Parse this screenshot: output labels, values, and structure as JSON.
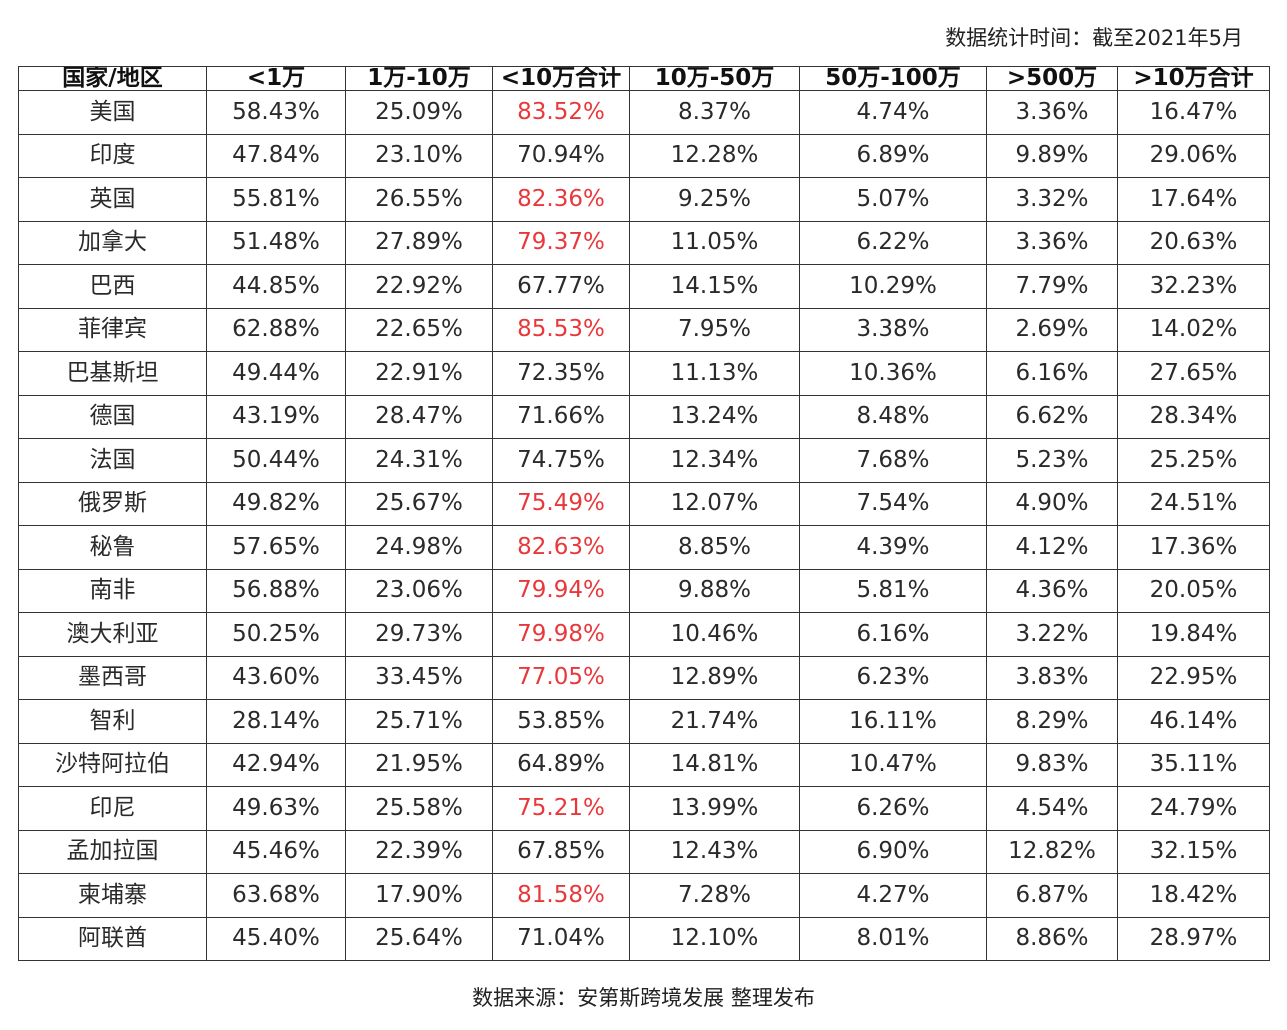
{
  "stat_time": "数据统计时间：截至2021年5月",
  "source": "数据来源：安第斯跨境发展 整理发布",
  "highlight_color": "#e8383c",
  "table": {
    "headers": [
      "国家/地区",
      "<1万",
      "1万-10万",
      "<10万合计",
      "10万-50万",
      "50万-100万",
      ">500万",
      ">10万合计"
    ],
    "highlight_column": 3,
    "rows": [
      {
        "cells": [
          "美国",
          "58.43%",
          "25.09%",
          "83.52%",
          "8.37%",
          "4.74%",
          "3.36%",
          "16.47%"
        ],
        "highlight": true
      },
      {
        "cells": [
          "印度",
          "47.84%",
          "23.10%",
          "70.94%",
          "12.28%",
          "6.89%",
          "9.89%",
          "29.06%"
        ],
        "highlight": false
      },
      {
        "cells": [
          "英国",
          "55.81%",
          "26.55%",
          "82.36%",
          "9.25%",
          "5.07%",
          "3.32%",
          "17.64%"
        ],
        "highlight": true
      },
      {
        "cells": [
          "加拿大",
          "51.48%",
          "27.89%",
          "79.37%",
          "11.05%",
          "6.22%",
          "3.36%",
          "20.63%"
        ],
        "highlight": true
      },
      {
        "cells": [
          "巴西",
          "44.85%",
          "22.92%",
          "67.77%",
          "14.15%",
          "10.29%",
          "7.79%",
          "32.23%"
        ],
        "highlight": false
      },
      {
        "cells": [
          "菲律宾",
          "62.88%",
          "22.65%",
          "85.53%",
          "7.95%",
          "3.38%",
          "2.69%",
          "14.02%"
        ],
        "highlight": true
      },
      {
        "cells": [
          "巴基斯坦",
          "49.44%",
          "22.91%",
          "72.35%",
          "11.13%",
          "10.36%",
          "6.16%",
          "27.65%"
        ],
        "highlight": false
      },
      {
        "cells": [
          "德国",
          "43.19%",
          "28.47%",
          "71.66%",
          "13.24%",
          "8.48%",
          "6.62%",
          "28.34%"
        ],
        "highlight": false
      },
      {
        "cells": [
          "法国",
          "50.44%",
          "24.31%",
          "74.75%",
          "12.34%",
          "7.68%",
          "5.23%",
          "25.25%"
        ],
        "highlight": false
      },
      {
        "cells": [
          "俄罗斯",
          "49.82%",
          "25.67%",
          "75.49%",
          "12.07%",
          "7.54%",
          "4.90%",
          "24.51%"
        ],
        "highlight": true
      },
      {
        "cells": [
          "秘鲁",
          "57.65%",
          "24.98%",
          "82.63%",
          "8.85%",
          "4.39%",
          "4.12%",
          "17.36%"
        ],
        "highlight": true
      },
      {
        "cells": [
          "南非",
          "56.88%",
          "23.06%",
          "79.94%",
          "9.88%",
          "5.81%",
          "4.36%",
          "20.05%"
        ],
        "highlight": true
      },
      {
        "cells": [
          "澳大利亚",
          "50.25%",
          "29.73%",
          "79.98%",
          "10.46%",
          "6.16%",
          "3.22%",
          "19.84%"
        ],
        "highlight": true
      },
      {
        "cells": [
          "墨西哥",
          "43.60%",
          "33.45%",
          "77.05%",
          "12.89%",
          "6.23%",
          "3.83%",
          "22.95%"
        ],
        "highlight": true
      },
      {
        "cells": [
          "智利",
          "28.14%",
          "25.71%",
          "53.85%",
          "21.74%",
          "16.11%",
          "8.29%",
          "46.14%"
        ],
        "highlight": false
      },
      {
        "cells": [
          "沙特阿拉伯",
          "42.94%",
          "21.95%",
          "64.89%",
          "14.81%",
          "10.47%",
          "9.83%",
          "35.11%"
        ],
        "highlight": false
      },
      {
        "cells": [
          "印尼",
          "49.63%",
          "25.58%",
          "75.21%",
          "13.99%",
          "6.26%",
          "4.54%",
          "24.79%"
        ],
        "highlight": true
      },
      {
        "cells": [
          "孟加拉国",
          "45.46%",
          "22.39%",
          "67.85%",
          "12.43%",
          "6.90%",
          "12.82%",
          "32.15%"
        ],
        "highlight": false
      },
      {
        "cells": [
          "柬埔寨",
          "63.68%",
          "17.90%",
          "81.58%",
          "7.28%",
          "4.27%",
          "6.87%",
          "18.42%"
        ],
        "highlight": true
      },
      {
        "cells": [
          "阿联酋",
          "45.40%",
          "25.64%",
          "71.04%",
          "12.10%",
          "8.01%",
          "8.86%",
          "28.97%"
        ],
        "highlight": false
      }
    ]
  }
}
